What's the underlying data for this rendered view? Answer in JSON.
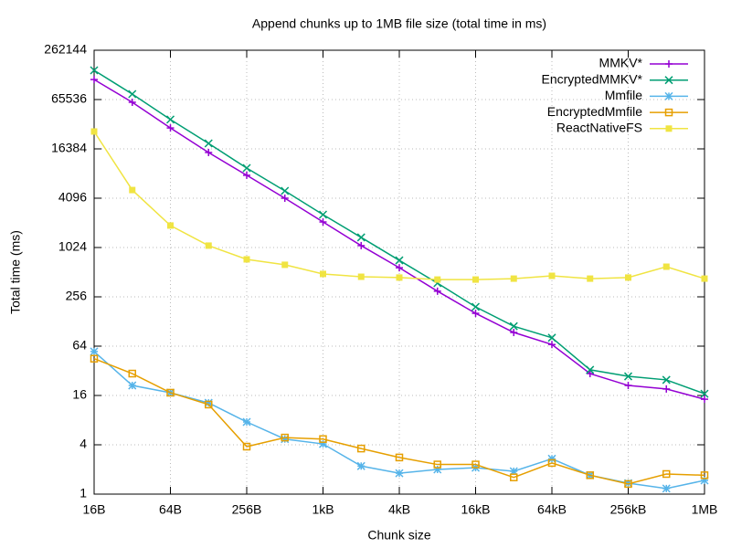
{
  "chart_data": {
    "type": "line",
    "title": "Append chunks up to 1MB file size (total time in ms)",
    "x_label": "Chunk size",
    "y_label": "Total time (ms)",
    "x": [
      16,
      32,
      64,
      128,
      256,
      512,
      1024,
      2048,
      4096,
      8192,
      16384,
      32768,
      65536,
      131072,
      262144,
      524288,
      1048576
    ],
    "xlim": [
      16,
      1048576
    ],
    "xticks": [
      {
        "value": 16,
        "label": "16B"
      },
      {
        "value": 64,
        "label": "64B"
      },
      {
        "value": 256,
        "label": "256B"
      },
      {
        "value": 1024,
        "label": "1kB"
      },
      {
        "value": 4096,
        "label": "4kB"
      },
      {
        "value": 16384,
        "label": "16kB"
      },
      {
        "value": 65536,
        "label": "64kB"
      },
      {
        "value": 262144,
        "label": "256kB"
      },
      {
        "value": 1048576,
        "label": "1MB"
      }
    ],
    "ylim": [
      1,
      262144
    ],
    "yticks": [
      1,
      4,
      16,
      64,
      256,
      1024,
      4096,
      16384,
      65536,
      262144
    ],
    "x_log": true,
    "y_log": true,
    "grid": true,
    "legend": "top-right",
    "series": [
      {
        "name": "MMKV*",
        "color": "#9400d3",
        "marker": "plus",
        "values": [
          115000,
          60700,
          29500,
          14800,
          7800,
          4096,
          2100,
          1080,
          580,
          300,
          161,
          94,
          67,
          29.6,
          21.2,
          19.2,
          14.4
        ]
      },
      {
        "name": "EncryptedMMKV*",
        "color": "#009e73",
        "marker": "cross",
        "values": [
          149000,
          76500,
          37400,
          19100,
          9550,
          5030,
          2580,
          1360,
          714,
          376,
          193,
          112,
          81,
          32.9,
          27.4,
          24.8,
          16.8
        ]
      },
      {
        "name": "Mmfile",
        "color": "#56b4e9",
        "marker": "star",
        "values": [
          55,
          21.2,
          17.3,
          13,
          7.6,
          4.7,
          4.1,
          2.2,
          1.8,
          2.0,
          2.1,
          1.9,
          2.7,
          1.7,
          1.36,
          1.17,
          1.47
        ]
      },
      {
        "name": "EncryptedMmfile",
        "color": "#e69f00",
        "marker": "square-open",
        "values": [
          45,
          29.6,
          17.3,
          12.4,
          3.8,
          4.9,
          4.7,
          3.6,
          2.8,
          2.3,
          2.3,
          1.6,
          2.4,
          1.7,
          1.33,
          1.76,
          1.7
        ]
      },
      {
        "name": "ReactNativeFS",
        "color": "#f0e442",
        "marker": "square-filled",
        "values": [
          26700,
          5150,
          1900,
          1080,
          734,
          630,
          487,
          450,
          440,
          416,
          416,
          427,
          462,
          427,
          440,
          597,
          427
        ]
      }
    ]
  }
}
